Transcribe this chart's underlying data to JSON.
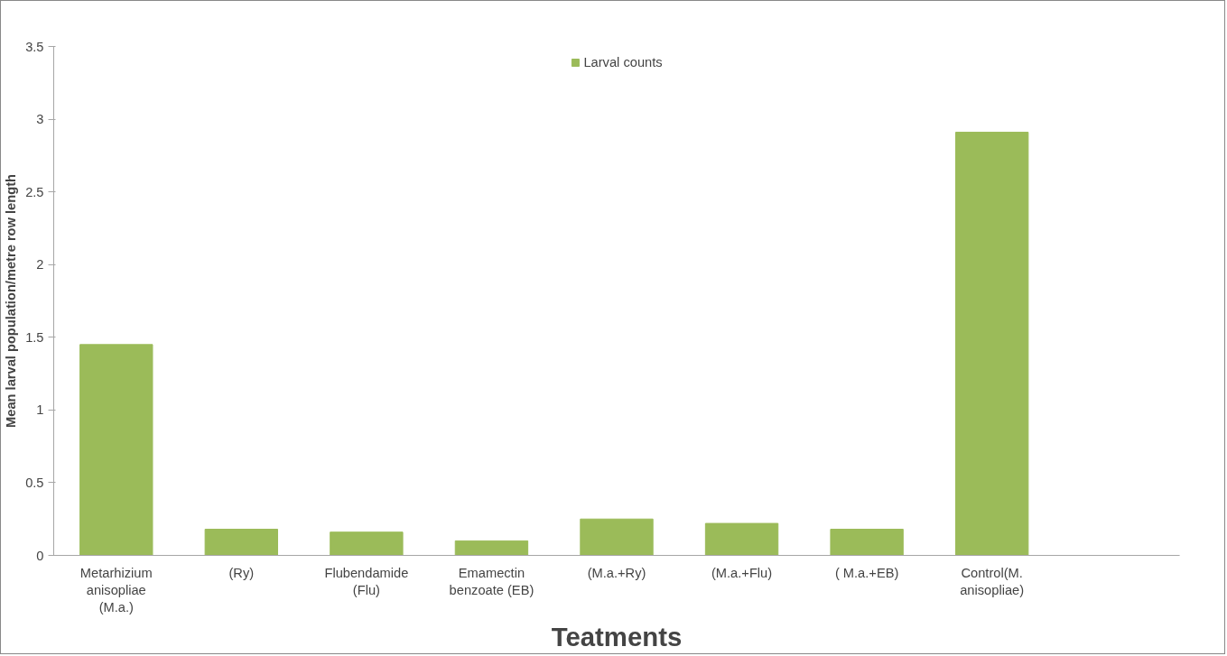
{
  "chart_data": {
    "type": "bar",
    "xlabel": "Teatments",
    "ylabel": "Mean larval population/metre row length",
    "categories": [
      "Metarhizium\nanisopliae\n(M.a.)",
      "(Ry)",
      "Flubendamide\n(Flu)",
      "Emamectin\nbenzoate (EB)",
      "(M.a.+Ry)",
      "(M.a.+Flu)",
      "( M.a.+EB)",
      "Control(M.\nanisopliae)",
      null
    ],
    "series": [
      {
        "name": "Larval counts",
        "color": "#9bbb59",
        "values": [
          1.45,
          0.18,
          0.16,
          0.1,
          0.25,
          0.22,
          0.18,
          2.91,
          null
        ]
      }
    ],
    "ylim": [
      0,
      3.5
    ],
    "yticks": [
      0,
      0.5,
      1,
      1.5,
      2,
      2.5,
      3,
      3.5
    ],
    "grid": false,
    "legend": "top"
  }
}
